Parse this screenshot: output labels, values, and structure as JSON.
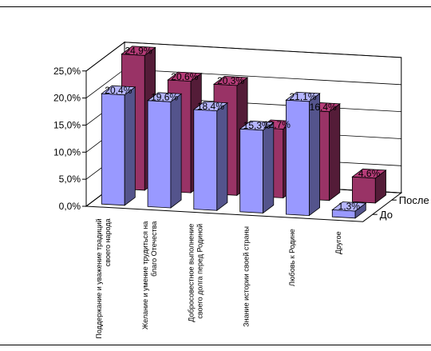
{
  "chart_data": {
    "type": "bar",
    "style": "3d-clustered",
    "categories": [
      [
        "Поддержание и уважение традиций",
        "своего народа"
      ],
      [
        "Желание и умение трудиться на",
        "благо Отечества"
      ],
      [
        "Добросовестное выполнение",
        "своего долга перед Родиной"
      ],
      [
        "Знание истории своей страны"
      ],
      [
        "Любовь к Родине"
      ],
      [
        "Другое"
      ]
    ],
    "series": [
      {
        "name": "До",
        "color": "#9999ff",
        "values": [
          20.4,
          19.6,
          18.4,
          15.3,
          21.1,
          1.3
        ]
      },
      {
        "name": "После",
        "color": "#993366",
        "values": [
          24.9,
          20.6,
          20.3,
          12.7,
          16.4,
          4.6
        ]
      }
    ],
    "data_labels": {
      "До": [
        "20,4%",
        "19,6%",
        "18,4%",
        "15,3%",
        "21,1%",
        "1,3%"
      ],
      "После": [
        "24,9%",
        "20,6%",
        "20,3%",
        "12,7%",
        "16,4%",
        "4,6%"
      ]
    },
    "y_ticks": [
      "0,0%",
      "5,0%",
      "10,0%",
      "15,0%",
      "20,0%",
      "25,0%"
    ],
    "ylim": [
      0,
      25
    ],
    "grid": true
  }
}
